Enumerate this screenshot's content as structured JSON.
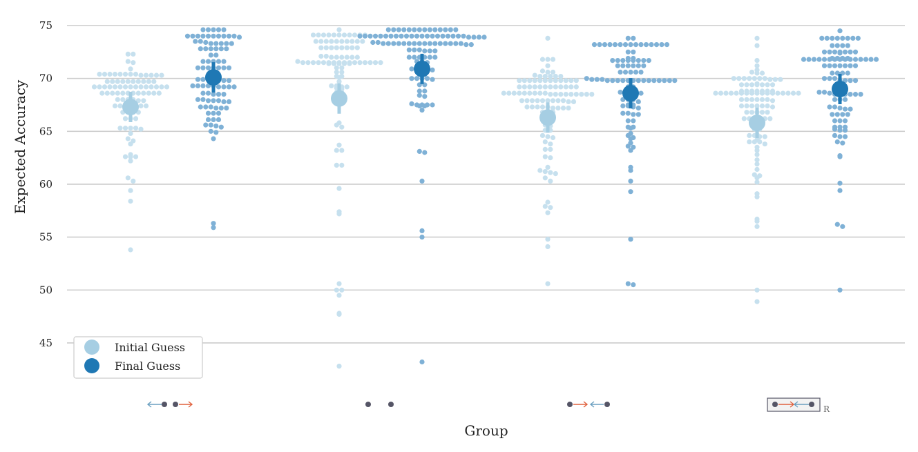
{
  "chart_data": {
    "type": "scatter",
    "subtype": "swarm",
    "title": "",
    "xlabel": "Group",
    "ylabel": "Expected Accuracy",
    "ylim": [
      41,
      76
    ],
    "yticks": [
      45,
      50,
      55,
      60,
      65,
      70,
      75
    ],
    "grid": true,
    "legend_position": "bottom-left",
    "colors": {
      "initial_points": "#c6e0ee",
      "final_points": "#7fb1d6",
      "initial_mean": "#a6cee3",
      "final_mean": "#1f78b4",
      "grid": "#cccccc",
      "arrow_blue": "#6a9fc0",
      "arrow_red": "#e0603c",
      "dot": "#555566"
    },
    "series": [
      {
        "name": "Initial Guess",
        "means": [
          67.3,
          68.1,
          66.3,
          65.8
        ]
      },
      {
        "name": "Final Guess",
        "means": [
          70.1,
          70.9,
          68.6,
          69.0
        ]
      }
    ],
    "groups": [
      {
        "icon": "left-arrow-dot-dot-right-arrow",
        "label_suffix": "",
        "initial": [
          72.3,
          72.3,
          71.6,
          71.5,
          70.9,
          70.4,
          70.4,
          70.4,
          70.4,
          70.4,
          70.4,
          70.4,
          70.4,
          70.3,
          70.3,
          70.3,
          70.3,
          70.3,
          69.7,
          69.7,
          69.7,
          69.7,
          69.7,
          69.7,
          69.7,
          69.7,
          69.7,
          69.7,
          69.2,
          69.2,
          69.2,
          69.2,
          69.2,
          69.2,
          69.2,
          69.2,
          69.2,
          69.2,
          69.2,
          69.2,
          69.2,
          69.2,
          69.2,
          68.6,
          68.6,
          68.6,
          68.6,
          68.6,
          68.6,
          68.6,
          68.6,
          68.6,
          68.6,
          68.6,
          68.6,
          68.0,
          68.0,
          68.0,
          68.0,
          67.9,
          67.9,
          67.4,
          67.4,
          67.4,
          67.4,
          67.4,
          67.4,
          67.4,
          66.8,
          66.8,
          66.8,
          66.8,
          66.2,
          66.2,
          66.2,
          65.3,
          65.3,
          65.3,
          65.3,
          65.2,
          64.8,
          64.3,
          64.1,
          63.8,
          62.8,
          62.6,
          62.6,
          62.6,
          62.2,
          60.6,
          60.3,
          59.4,
          58.4,
          53.8
        ],
        "final": [
          74.6,
          74.6,
          74.6,
          74.6,
          74.6,
          74.0,
          74.0,
          74.0,
          74.0,
          74.0,
          74.0,
          74.0,
          74.0,
          74.0,
          74.0,
          73.9,
          73.5,
          73.5,
          73.4,
          73.3,
          73.3,
          73.3,
          73.3,
          73.3,
          72.8,
          72.8,
          72.8,
          72.8,
          72.8,
          72.8,
          72.2,
          72.2,
          71.6,
          71.6,
          71.6,
          71.6,
          71.6,
          71.0,
          71.0,
          71.0,
          71.0,
          71.0,
          71.0,
          71.0,
          70.5,
          70.5,
          70.4,
          69.9,
          69.9,
          69.9,
          69.9,
          69.8,
          69.8,
          69.8,
          69.3,
          69.3,
          69.3,
          69.3,
          69.3,
          69.2,
          69.2,
          69.2,
          69.2,
          68.6,
          68.6,
          68.5,
          68.5,
          68.5,
          68.0,
          68.0,
          67.9,
          67.9,
          67.9,
          67.8,
          67.8,
          67.3,
          67.3,
          67.3,
          67.2,
          67.2,
          67.2,
          66.7,
          66.7,
          66.7,
          66.1,
          66.1,
          66.1,
          65.6,
          65.6,
          65.5,
          65.4,
          65.0,
          64.9,
          64.3,
          56.3,
          55.9
        ]
      },
      {
        "icon": "dot-dot",
        "label_suffix": "",
        "initial": [
          74.6,
          74.1,
          74.1,
          74.1,
          74.1,
          74.1,
          74.1,
          74.1,
          74.1,
          74.1,
          74.1,
          74.1,
          73.5,
          73.5,
          73.5,
          73.5,
          73.5,
          73.5,
          73.5,
          73.5,
          73.5,
          73.5,
          72.9,
          72.9,
          72.9,
          72.9,
          72.9,
          72.9,
          72.9,
          72.9,
          72.1,
          72.1,
          72.0,
          72.0,
          72.0,
          72.0,
          72.0,
          72.0,
          71.6,
          71.5,
          71.5,
          71.5,
          71.5,
          71.5,
          71.5,
          71.5,
          71.5,
          71.5,
          71.5,
          71.5,
          71.5,
          71.5,
          71.5,
          71.5,
          71.5,
          71.4,
          71.4,
          71.4,
          71.4,
          71.4,
          71.0,
          71.0,
          70.6,
          70.6,
          70.2,
          70.2,
          70.1,
          69.7,
          69.3,
          69.3,
          69.2,
          69.2,
          69.1,
          69.0,
          68.7,
          68.7,
          65.8,
          65.6,
          65.4,
          63.7,
          63.2,
          63.2,
          61.8,
          61.8,
          59.6,
          57.4,
          57.2,
          50.6,
          50.0,
          50.0,
          49.5,
          47.8,
          47.7,
          42.8
        ],
        "final": [
          74.6,
          74.6,
          74.6,
          74.6,
          74.6,
          74.6,
          74.6,
          74.6,
          74.6,
          74.6,
          74.6,
          74.6,
          74.6,
          74.6,
          74.0,
          74.0,
          74.0,
          74.0,
          74.0,
          74.0,
          74.0,
          74.0,
          74.0,
          74.0,
          74.0,
          74.0,
          74.0,
          74.0,
          74.0,
          74.0,
          74.0,
          74.0,
          74.0,
          74.0,
          74.0,
          73.9,
          73.9,
          73.9,
          73.9,
          73.4,
          73.4,
          73.3,
          73.3,
          73.3,
          73.3,
          73.3,
          73.3,
          73.3,
          73.3,
          73.3,
          73.3,
          73.3,
          73.3,
          73.3,
          73.3,
          73.3,
          73.3,
          73.2,
          73.2,
          72.7,
          72.7,
          72.7,
          72.6,
          72.6,
          72.6,
          72.0,
          72.0,
          72.0,
          72.0,
          72.0,
          72.0,
          71.6,
          71.6,
          71.5,
          71.4,
          71.4,
          70.9,
          70.9,
          70.9,
          70.9,
          70.8,
          70.5,
          70.3,
          70.0,
          70.0,
          70.0,
          70.0,
          69.9,
          69.4,
          69.4,
          68.8,
          68.8,
          68.4,
          68.3,
          67.6,
          67.5,
          67.5,
          67.5,
          67.5,
          67.4,
          67.4,
          67.0,
          63.1,
          63.0,
          60.3,
          55.6,
          55.0,
          43.2
        ]
      },
      {
        "icon": "dot-right-arrow-left-arrow-dot",
        "label_suffix": "",
        "initial": [
          73.8,
          71.8,
          71.8,
          71.8,
          71.2,
          70.7,
          70.6,
          70.6,
          70.3,
          70.2,
          70.2,
          70.2,
          70.2,
          70.2,
          69.8,
          69.8,
          69.8,
          69.8,
          69.8,
          69.8,
          69.8,
          69.8,
          69.8,
          69.8,
          69.8,
          69.8,
          69.2,
          69.2,
          69.2,
          69.2,
          69.2,
          69.2,
          69.2,
          69.2,
          69.2,
          69.2,
          69.2,
          69.2,
          68.6,
          68.6,
          68.6,
          68.6,
          68.6,
          68.6,
          68.6,
          68.6,
          68.6,
          68.5,
          68.5,
          68.5,
          68.5,
          68.5,
          68.5,
          68.5,
          68.5,
          68.5,
          67.9,
          67.9,
          67.9,
          67.9,
          67.9,
          67.9,
          67.9,
          67.9,
          67.9,
          67.8,
          67.8,
          67.3,
          67.3,
          67.3,
          67.3,
          67.3,
          67.2,
          67.2,
          67.2,
          67.2,
          66.8,
          66.8,
          66.8,
          66.7,
          66.2,
          66.2,
          66.2,
          65.8,
          65.6,
          65.5,
          65.1,
          65.1,
          64.6,
          64.5,
          64.4,
          64.0,
          63.8,
          63.3,
          63.3,
          62.6,
          62.5,
          61.6,
          61.3,
          61.2,
          61.1,
          61.0,
          60.6,
          60.3,
          58.3,
          57.9,
          57.8,
          57.3,
          54.8,
          54.1,
          50.6
        ],
        "final": [
          73.8,
          73.8,
          73.2,
          73.2,
          73.2,
          73.2,
          73.2,
          73.2,
          73.2,
          73.2,
          73.2,
          73.2,
          73.2,
          73.2,
          73.2,
          73.2,
          73.2,
          72.5,
          72.5,
          71.9,
          71.9,
          71.7,
          71.7,
          71.7,
          71.7,
          71.7,
          71.7,
          71.7,
          71.7,
          71.2,
          71.2,
          71.2,
          71.2,
          71.2,
          71.2,
          70.6,
          70.6,
          70.6,
          70.6,
          70.6,
          70.0,
          69.9,
          69.9,
          69.9,
          69.8,
          69.8,
          69.8,
          69.8,
          69.8,
          69.8,
          69.8,
          69.8,
          69.8,
          69.8,
          69.8,
          69.8,
          69.8,
          69.8,
          69.2,
          69.2,
          69.1,
          68.7,
          68.7,
          68.6,
          68.6,
          68.6,
          68.0,
          68.0,
          68.0,
          67.8,
          67.5,
          67.5,
          67.4,
          67.4,
          67.3,
          67.2,
          66.7,
          66.7,
          66.6,
          66.6,
          66.0,
          66.0,
          65.4,
          65.4,
          65.3,
          64.8,
          64.6,
          64.4,
          64.3,
          63.9,
          63.6,
          63.5,
          63.2,
          61.6,
          61.3,
          60.3,
          59.3,
          54.8,
          50.6,
          50.5
        ]
      },
      {
        "icon": "boxed-dot-right-arrow-left-arrow-dot",
        "label_suffix": "R",
        "initial": [
          73.8,
          73.1,
          71.7,
          71.2,
          70.8,
          70.6,
          70.5,
          70.5,
          70.0,
          70.0,
          70.0,
          70.0,
          70.0,
          70.0,
          70.0,
          69.9,
          69.9,
          69.9,
          69.5,
          69.4,
          69.4,
          69.4,
          69.4,
          69.4,
          69.4,
          69.4,
          68.8,
          68.8,
          68.8,
          68.8,
          68.8,
          68.8,
          68.8,
          68.6,
          68.6,
          68.6,
          68.6,
          68.6,
          68.6,
          68.6,
          68.6,
          68.6,
          68.6,
          68.6,
          68.6,
          68.6,
          68.6,
          68.6,
          68.6,
          68.6,
          68.0,
          68.0,
          68.0,
          68.0,
          68.0,
          68.0,
          67.9,
          67.4,
          67.4,
          67.4,
          67.4,
          67.4,
          67.4,
          67.3,
          66.8,
          66.8,
          66.8,
          66.8,
          66.8,
          66.2,
          66.2,
          66.2,
          66.2,
          66.2,
          66.2,
          65.9,
          65.9,
          65.6,
          65.2,
          65.2,
          64.7,
          64.6,
          64.6,
          64.5,
          64.5,
          64.2,
          64.0,
          64.0,
          64.0,
          63.8,
          63.5,
          63.2,
          62.8,
          62.3,
          61.9,
          61.4,
          60.9,
          60.8,
          60.6,
          60.2,
          59.1,
          58.8,
          56.7,
          56.5,
          56.0,
          50.0,
          48.9
        ],
        "final": [
          74.5,
          73.8,
          73.8,
          73.8,
          73.8,
          73.8,
          73.8,
          73.8,
          73.8,
          73.1,
          73.1,
          73.1,
          73.1,
          72.5,
          72.5,
          72.5,
          72.5,
          72.5,
          72.5,
          72.5,
          72.4,
          71.9,
          71.9,
          71.9,
          71.9,
          71.8,
          71.8,
          71.8,
          71.8,
          71.8,
          71.8,
          71.8,
          71.8,
          71.8,
          71.8,
          71.8,
          71.8,
          71.8,
          71.8,
          71.8,
          71.2,
          71.2,
          71.2,
          71.2,
          71.2,
          71.2,
          71.2,
          70.5,
          70.5,
          70.5,
          70.5,
          70.4,
          70.0,
          70.0,
          70.0,
          69.8,
          69.8,
          69.8,
          69.8,
          69.4,
          69.3,
          68.8,
          68.7,
          68.7,
          68.6,
          68.5,
          68.5,
          68.5,
          68.5,
          68.5,
          68.5,
          68.0,
          68.0,
          68.0,
          67.3,
          67.3,
          67.2,
          67.1,
          67.1,
          66.6,
          66.6,
          66.6,
          66.6,
          66.0,
          66.0,
          66.0,
          65.4,
          65.4,
          65.4,
          65.2,
          65.1,
          65.1,
          64.6,
          64.5,
          64.5,
          64.0,
          63.9,
          62.7,
          62.6,
          60.1,
          59.4,
          56.2,
          56.0,
          50.0
        ]
      }
    ],
    "legend": [
      {
        "label": "Initial Guess",
        "series": "initial"
      },
      {
        "label": "Final Guess",
        "series": "final"
      }
    ]
  }
}
